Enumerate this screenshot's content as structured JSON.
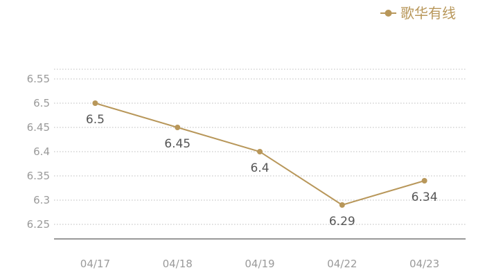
{
  "chart_data": {
    "type": "line",
    "title": "",
    "xlabel": "",
    "ylabel": "",
    "categories": [
      "04/17",
      "04/18",
      "04/19",
      "04/22",
      "04/23"
    ],
    "series": [
      {
        "name": "歌华有线",
        "values": [
          6.5,
          6.45,
          6.4,
          6.29,
          6.34
        ],
        "labels": [
          "6.5",
          "6.45",
          "6.4",
          "6.29",
          "6.34"
        ],
        "color": "#b8975a"
      }
    ],
    "y_ticks": [
      "6.25",
      "6.3",
      "6.35",
      "6.4",
      "6.45",
      "6.5",
      "6.55"
    ],
    "ylim": [
      6.22,
      6.57
    ],
    "grid": true,
    "grid_style": "dotted",
    "legend_position": "top-right",
    "colors": {
      "line": "#b8975a",
      "grid": "#bbbbbb",
      "axis": "#333333",
      "tick_text": "#9a9a9a",
      "label_text": "#555555"
    }
  }
}
